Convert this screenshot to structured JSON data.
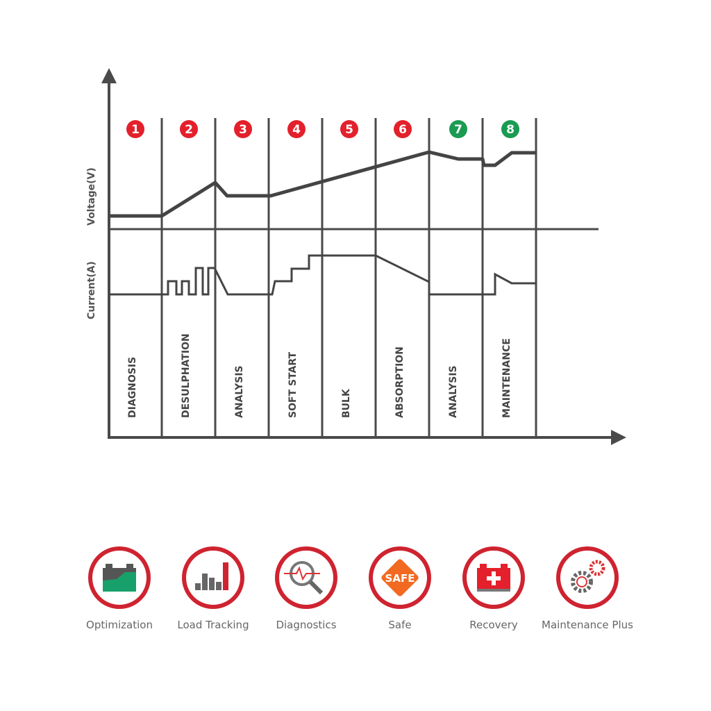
{
  "axes": {
    "y_top_label": "Voltage(V)",
    "y_bottom_label": "Current(A)"
  },
  "colors": {
    "line": "#444444",
    "badge_red": "#e3202b",
    "badge_green": "#1a9b52",
    "ring": "#cf2330"
  },
  "stages": [
    {
      "num": "1",
      "label": "DIAGNOSIS",
      "color": "red"
    },
    {
      "num": "2",
      "label": "DESULPHATION",
      "color": "red"
    },
    {
      "num": "3",
      "label": "ANALYSIS",
      "color": "red"
    },
    {
      "num": "4",
      "label": "SOFT START",
      "color": "red"
    },
    {
      "num": "5",
      "label": "BULK",
      "color": "red"
    },
    {
      "num": "6",
      "label": "ABSORPTION",
      "color": "red"
    },
    {
      "num": "7",
      "label": "ANALYSIS",
      "color": "green"
    },
    {
      "num": "8",
      "label": "MAINTENANCE",
      "color": "green"
    }
  ],
  "features": [
    {
      "label": "Optimization",
      "icon": "battery-level-icon"
    },
    {
      "label": "Load Tracking",
      "icon": "bar-chart-icon"
    },
    {
      "label": "Diagnostics",
      "icon": "magnifier-pulse-icon"
    },
    {
      "label": "Safe",
      "icon": "safe-diamond-icon",
      "badge_text": "SAFE"
    },
    {
      "label": "Recovery",
      "icon": "battery-plus-icon"
    },
    {
      "label": "Maintenance Plus",
      "icon": "gears-icon"
    }
  ]
}
